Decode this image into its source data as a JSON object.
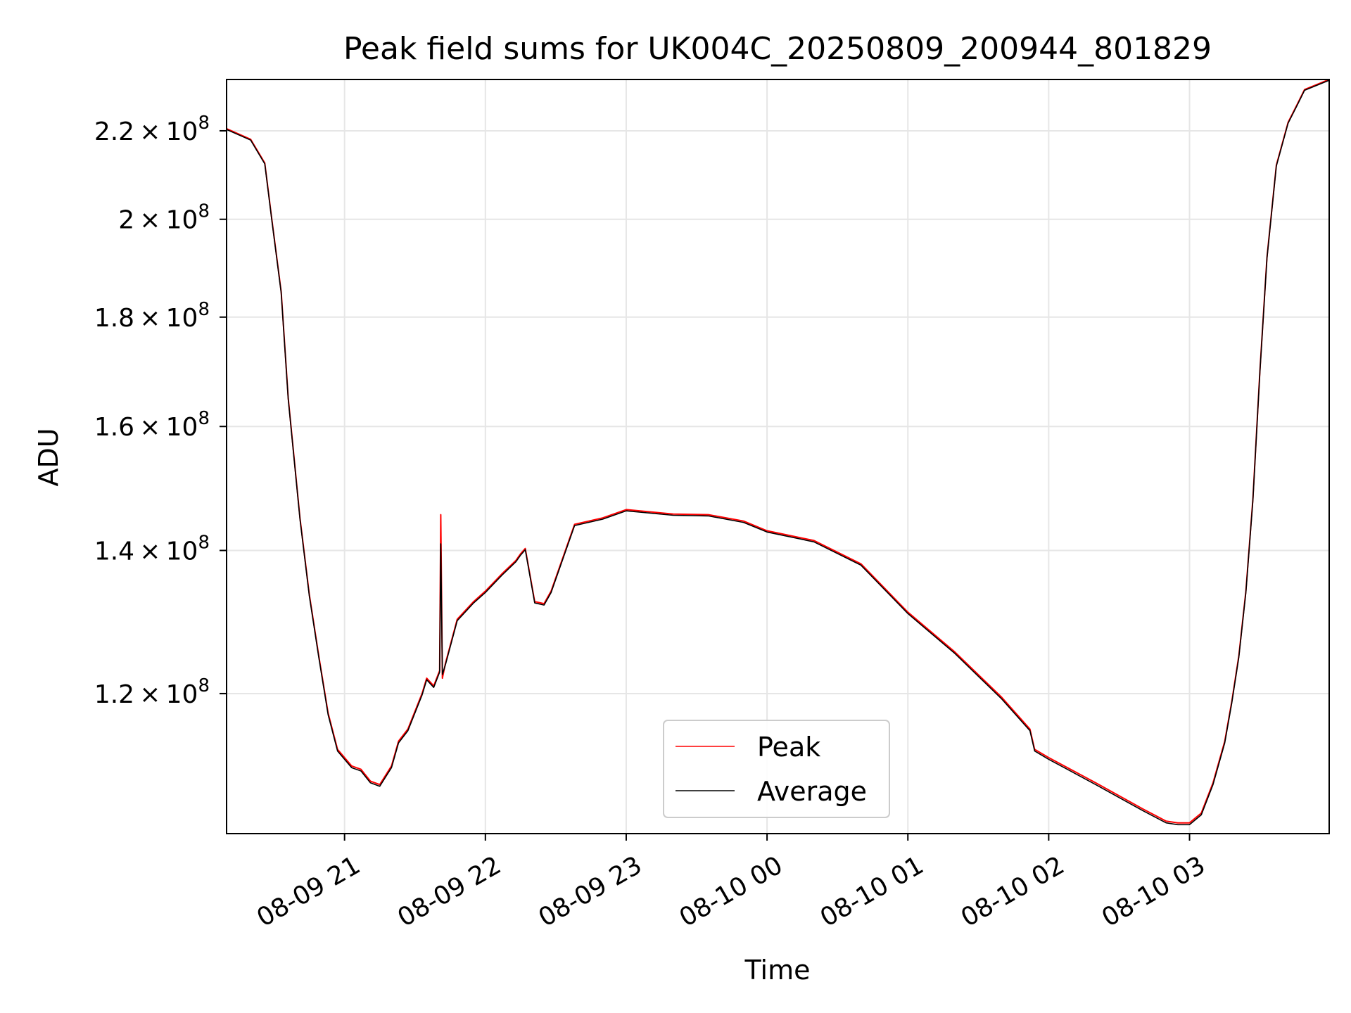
{
  "chart_data": {
    "type": "line",
    "title": "Peak field sums for UK004C_20250809_200944_801829",
    "xlabel": "Time",
    "ylabel": "ADU",
    "y_scale": "log",
    "xlim": [
      "2025-08-09 20:09:44",
      "2025-08-10 03:59:30"
    ],
    "ylim": [
      103200000,
      232500000
    ],
    "x_ticks": [
      {
        "value": "2025-08-09 21:00",
        "label": "08-09 21"
      },
      {
        "value": "2025-08-09 22:00",
        "label": "08-09 22"
      },
      {
        "value": "2025-08-09 23:00",
        "label": "08-09 23"
      },
      {
        "value": "2025-08-10 00:00",
        "label": "08-10 00"
      },
      {
        "value": "2025-08-10 01:00",
        "label": "08-10 01"
      },
      {
        "value": "2025-08-10 02:00",
        "label": "08-10 02"
      },
      {
        "value": "2025-08-10 03:00",
        "label": "08-10 03"
      }
    ],
    "y_ticks": [
      {
        "value": 120000000,
        "mantissa": "1.2",
        "exponent": "8"
      },
      {
        "value": 140000000,
        "mantissa": "1.4",
        "exponent": "8"
      },
      {
        "value": 160000000,
        "mantissa": "1.6",
        "exponent": "8"
      },
      {
        "value": 180000000,
        "mantissa": "1.8",
        "exponent": "8"
      },
      {
        "value": 200000000,
        "mantissa": "2",
        "exponent": "8"
      },
      {
        "value": 220000000,
        "mantissa": "2.2",
        "exponent": "8"
      }
    ],
    "grid": true,
    "legend_position": "bottom-center",
    "series": [
      {
        "name": "Peak",
        "color": "#ff0000",
        "x": [
          "2025-08-09 20:09:44",
          "2025-08-09 20:20",
          "2025-08-09 20:26",
          "2025-08-09 20:29",
          "2025-08-09 20:33",
          "2025-08-09 20:36",
          "2025-08-09 20:41",
          "2025-08-09 20:45",
          "2025-08-09 20:49",
          "2025-08-09 20:53",
          "2025-08-09 20:57",
          "2025-08-09 21:03",
          "2025-08-09 21:07",
          "2025-08-09 21:11",
          "2025-08-09 21:15",
          "2025-08-09 21:20",
          "2025-08-09 21:23",
          "2025-08-09 21:27",
          "2025-08-09 21:33",
          "2025-08-09 21:35",
          "2025-08-09 21:38",
          "2025-08-09 21:40:30",
          "2025-08-09 21:41",
          "2025-08-09 21:41:40",
          "2025-08-09 21:43",
          "2025-08-09 21:48",
          "2025-08-09 21:55",
          "2025-08-09 22:00",
          "2025-08-09 22:07",
          "2025-08-09 22:13",
          "2025-08-09 22:15",
          "2025-08-09 22:17",
          "2025-08-09 22:21",
          "2025-08-09 22:25",
          "2025-08-09 22:28",
          "2025-08-09 22:38",
          "2025-08-09 22:50",
          "2025-08-09 23:00",
          "2025-08-09 23:20",
          "2025-08-09 23:35",
          "2025-08-09 23:50",
          "2025-08-10 00:00",
          "2025-08-10 00:20",
          "2025-08-10 00:40",
          "2025-08-10 01:00",
          "2025-08-10 01:20",
          "2025-08-10 01:40",
          "2025-08-10 01:52",
          "2025-08-10 01:54",
          "2025-08-10 02:00",
          "2025-08-10 02:20",
          "2025-08-10 02:40",
          "2025-08-10 02:50",
          "2025-08-10 02:55",
          "2025-08-10 03:00",
          "2025-08-10 03:05",
          "2025-08-10 03:10",
          "2025-08-10 03:15",
          "2025-08-10 03:18",
          "2025-08-10 03:21",
          "2025-08-10 03:24",
          "2025-08-10 03:27",
          "2025-08-10 03:30",
          "2025-08-10 03:33",
          "2025-08-10 03:37",
          "2025-08-10 03:42",
          "2025-08-10 03:46",
          "2025-08-10 03:49",
          "2025-08-10 03:59:30"
        ],
        "y": [
          220500000,
          218000000,
          212500000,
          200000000,
          185000000,
          165000000,
          145000000,
          133500000,
          125000000,
          117500000,
          113000000,
          111000000,
          110600000,
          109200000,
          108800000,
          111000000,
          114000000,
          115500000,
          120000000,
          122000000,
          121000000,
          123000000,
          145500000,
          122000000,
          124000000,
          130000000,
          132500000,
          134000000,
          136500000,
          138500000,
          139500000,
          140300000,
          132500000,
          132200000,
          134000000,
          144000000,
          145000000,
          146300000,
          145600000,
          145500000,
          144500000,
          143000000,
          141500000,
          138000000,
          131000000,
          125500000,
          119500000,
          115500000,
          113000000,
          112000000,
          109000000,
          106000000,
          104600000,
          104400000,
          104400000,
          105500000,
          109000000,
          114000000,
          119000000,
          125000000,
          134000000,
          148000000,
          170000000,
          192000000,
          212000000,
          222000000,
          226500000,
          230000000,
          232500000
        ]
      },
      {
        "name": "Average",
        "color": "#000000",
        "x": [
          "2025-08-09 20:09:44",
          "2025-08-09 20:20",
          "2025-08-09 20:26",
          "2025-08-09 20:29",
          "2025-08-09 20:33",
          "2025-08-09 20:36",
          "2025-08-09 20:41",
          "2025-08-09 20:45",
          "2025-08-09 20:49",
          "2025-08-09 20:53",
          "2025-08-09 20:57",
          "2025-08-09 21:03",
          "2025-08-09 21:07",
          "2025-08-09 21:11",
          "2025-08-09 21:15",
          "2025-08-09 21:20",
          "2025-08-09 21:23",
          "2025-08-09 21:27",
          "2025-08-09 21:33",
          "2025-08-09 21:35",
          "2025-08-09 21:38",
          "2025-08-09 21:40:30",
          "2025-08-09 21:41",
          "2025-08-09 21:41:40",
          "2025-08-09 21:43",
          "2025-08-09 21:48",
          "2025-08-09 21:55",
          "2025-08-09 22:00",
          "2025-08-09 22:07",
          "2025-08-09 22:13",
          "2025-08-09 22:15",
          "2025-08-09 22:17",
          "2025-08-09 22:21",
          "2025-08-09 22:25",
          "2025-08-09 22:28",
          "2025-08-09 22:38",
          "2025-08-09 22:50",
          "2025-08-09 23:00",
          "2025-08-09 23:20",
          "2025-08-09 23:35",
          "2025-08-09 23:50",
          "2025-08-10 00:00",
          "2025-08-10 00:20",
          "2025-08-10 00:40",
          "2025-08-10 01:00",
          "2025-08-10 01:20",
          "2025-08-10 01:40",
          "2025-08-10 01:52",
          "2025-08-10 01:54",
          "2025-08-10 02:00",
          "2025-08-10 02:20",
          "2025-08-10 02:40",
          "2025-08-10 02:50",
          "2025-08-10 02:55",
          "2025-08-10 03:00",
          "2025-08-10 03:05",
          "2025-08-10 03:10",
          "2025-08-10 03:15",
          "2025-08-10 03:18",
          "2025-08-10 03:21",
          "2025-08-10 03:24",
          "2025-08-10 03:27",
          "2025-08-10 03:30",
          "2025-08-10 03:33",
          "2025-08-10 03:37",
          "2025-08-10 03:42",
          "2025-08-10 03:46",
          "2025-08-10 03:49",
          "2025-08-10 03:59:30"
        ],
        "y": [
          220300000,
          217800000,
          212300000,
          199800000,
          184800000,
          164800000,
          144800000,
          133300000,
          124800000,
          117300000,
          112800000,
          110800000,
          110400000,
          109000000,
          108600000,
          110800000,
          113800000,
          115300000,
          119800000,
          121800000,
          120800000,
          122800000,
          141000000,
          122500000,
          123800000,
          129800000,
          132300000,
          133800000,
          136300000,
          138300000,
          139300000,
          140100000,
          132300000,
          132000000,
          133800000,
          143800000,
          144800000,
          146100000,
          145400000,
          145300000,
          144300000,
          142800000,
          141300000,
          137800000,
          130800000,
          125300000,
          119300000,
          115300000,
          112800000,
          111800000,
          108800000,
          105800000,
          104400000,
          104200000,
          104200000,
          105300000,
          108800000,
          113800000,
          118800000,
          124800000,
          133800000,
          147800000,
          169800000,
          191800000,
          211800000,
          221800000,
          226300000,
          229800000,
          232300000
        ]
      }
    ]
  }
}
